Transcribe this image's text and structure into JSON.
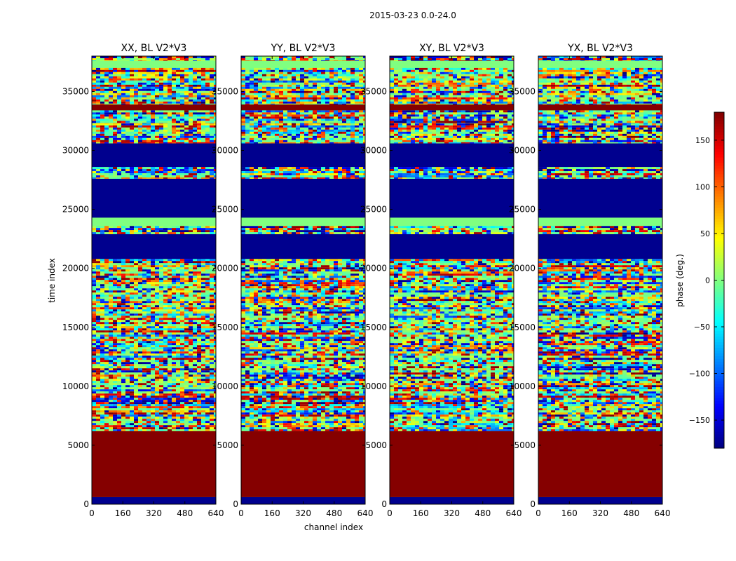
{
  "suptitle": "2015-03-23 0.0-24.0",
  "chart_data": {
    "type": "heatmap",
    "suptitle": "2015-03-23 0.0-24.0",
    "xlabel": "channel index",
    "ylabel": "time index",
    "xlim": [
      0,
      640
    ],
    "ylim": [
      0,
      38000
    ],
    "xticks": [
      0,
      160,
      320,
      480,
      640
    ],
    "yticks": [
      0,
      5000,
      10000,
      15000,
      20000,
      25000,
      30000,
      35000
    ],
    "colormap": "jet",
    "panels": [
      {
        "title": "XX, BL V2*V3"
      },
      {
        "title": "YY, BL V2*V3"
      },
      {
        "title": "XY, BL V2*V3"
      },
      {
        "title": "YX, BL V2*V3"
      }
    ],
    "colorbar": {
      "label": "phase (deg.)",
      "range": [
        -180,
        180
      ],
      "ticks": [
        -150,
        -100,
        -50,
        0,
        50,
        100,
        150
      ]
    },
    "bands": [
      {
        "from": 0,
        "to": 600,
        "kind": "value",
        "value": -175
      },
      {
        "from": 600,
        "to": 6200,
        "kind": "value",
        "value": 178
      },
      {
        "from": 6200,
        "to": 20800,
        "kind": "noise"
      },
      {
        "from": 20800,
        "to": 21200,
        "kind": "value",
        "value": -175
      },
      {
        "from": 21200,
        "to": 22900,
        "kind": "value",
        "value": -175
      },
      {
        "from": 22900,
        "to": 23600,
        "kind": "noise"
      },
      {
        "from": 23600,
        "to": 24300,
        "kind": "value",
        "value": 0
      },
      {
        "from": 24300,
        "to": 27600,
        "kind": "value",
        "value": -175
      },
      {
        "from": 27600,
        "to": 28600,
        "kind": "noise"
      },
      {
        "from": 28600,
        "to": 30600,
        "kind": "value",
        "value": -175
      },
      {
        "from": 30600,
        "to": 32300,
        "kind": "noise"
      },
      {
        "from": 32300,
        "to": 33400,
        "kind": "noise"
      },
      {
        "from": 33400,
        "to": 33900,
        "kind": "value",
        "value": 178
      },
      {
        "from": 33900,
        "to": 37000,
        "kind": "noise"
      },
      {
        "from": 37000,
        "to": 37600,
        "kind": "value",
        "value": 0
      },
      {
        "from": 37600,
        "to": 38000,
        "kind": "noise"
      }
    ]
  }
}
